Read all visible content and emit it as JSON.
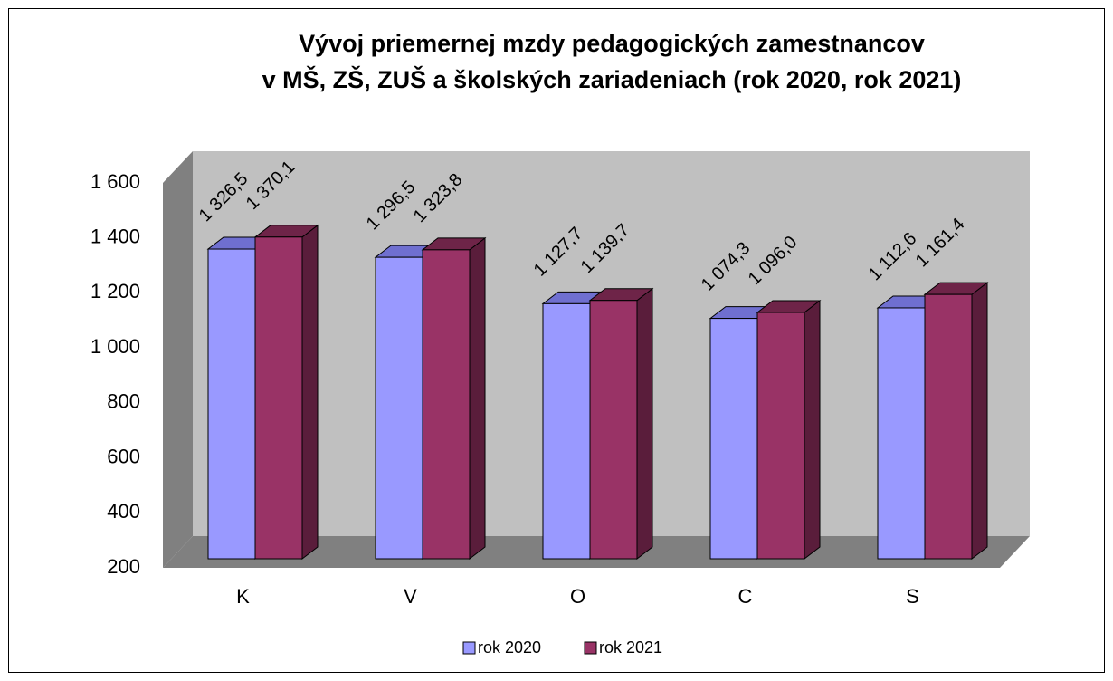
{
  "chart_data": {
    "type": "bar3d",
    "title": [
      "Vývoj priemernej mzdy pedagogických zamestnancov",
      "v MŠ, ZŠ, ZUŠ a školských zariadeniach  (rok 2020, rok 2021)"
    ],
    "categories": [
      "K",
      "V",
      "O",
      "C",
      "S"
    ],
    "series": [
      {
        "name": "rok 2020",
        "color": "#9999ff",
        "top_color": "#6f6fd0",
        "side_color": "#4d4da6",
        "values": [
          1326.5,
          1296.5,
          1127.7,
          1074.3,
          1112.6
        ],
        "value_labels": [
          "1 326,5",
          "1 296,5",
          "1 127,7",
          "1 074,3",
          "1 112,6"
        ]
      },
      {
        "name": "rok 2021",
        "color": "#993366",
        "top_color": "#6e2448",
        "side_color": "#5a1d3b",
        "values": [
          1370.1,
          1323.8,
          1139.7,
          1096.0,
          1161.4
        ],
        "value_labels": [
          "1 370,1",
          "1 323,8",
          "1 139,7",
          "1 096,0",
          "1 161,4"
        ]
      }
    ],
    "ylim": [
      200,
      1600
    ],
    "yticks": [
      200,
      400,
      600,
      800,
      {
        "value": 1000,
        "label": "1 000"
      },
      {
        "value": 1200,
        "label": "1 200"
      },
      {
        "value": 1400,
        "label": "1 400"
      },
      {
        "value": 1600,
        "label": "1 600"
      }
    ],
    "grid": false,
    "legend": "bottom"
  }
}
